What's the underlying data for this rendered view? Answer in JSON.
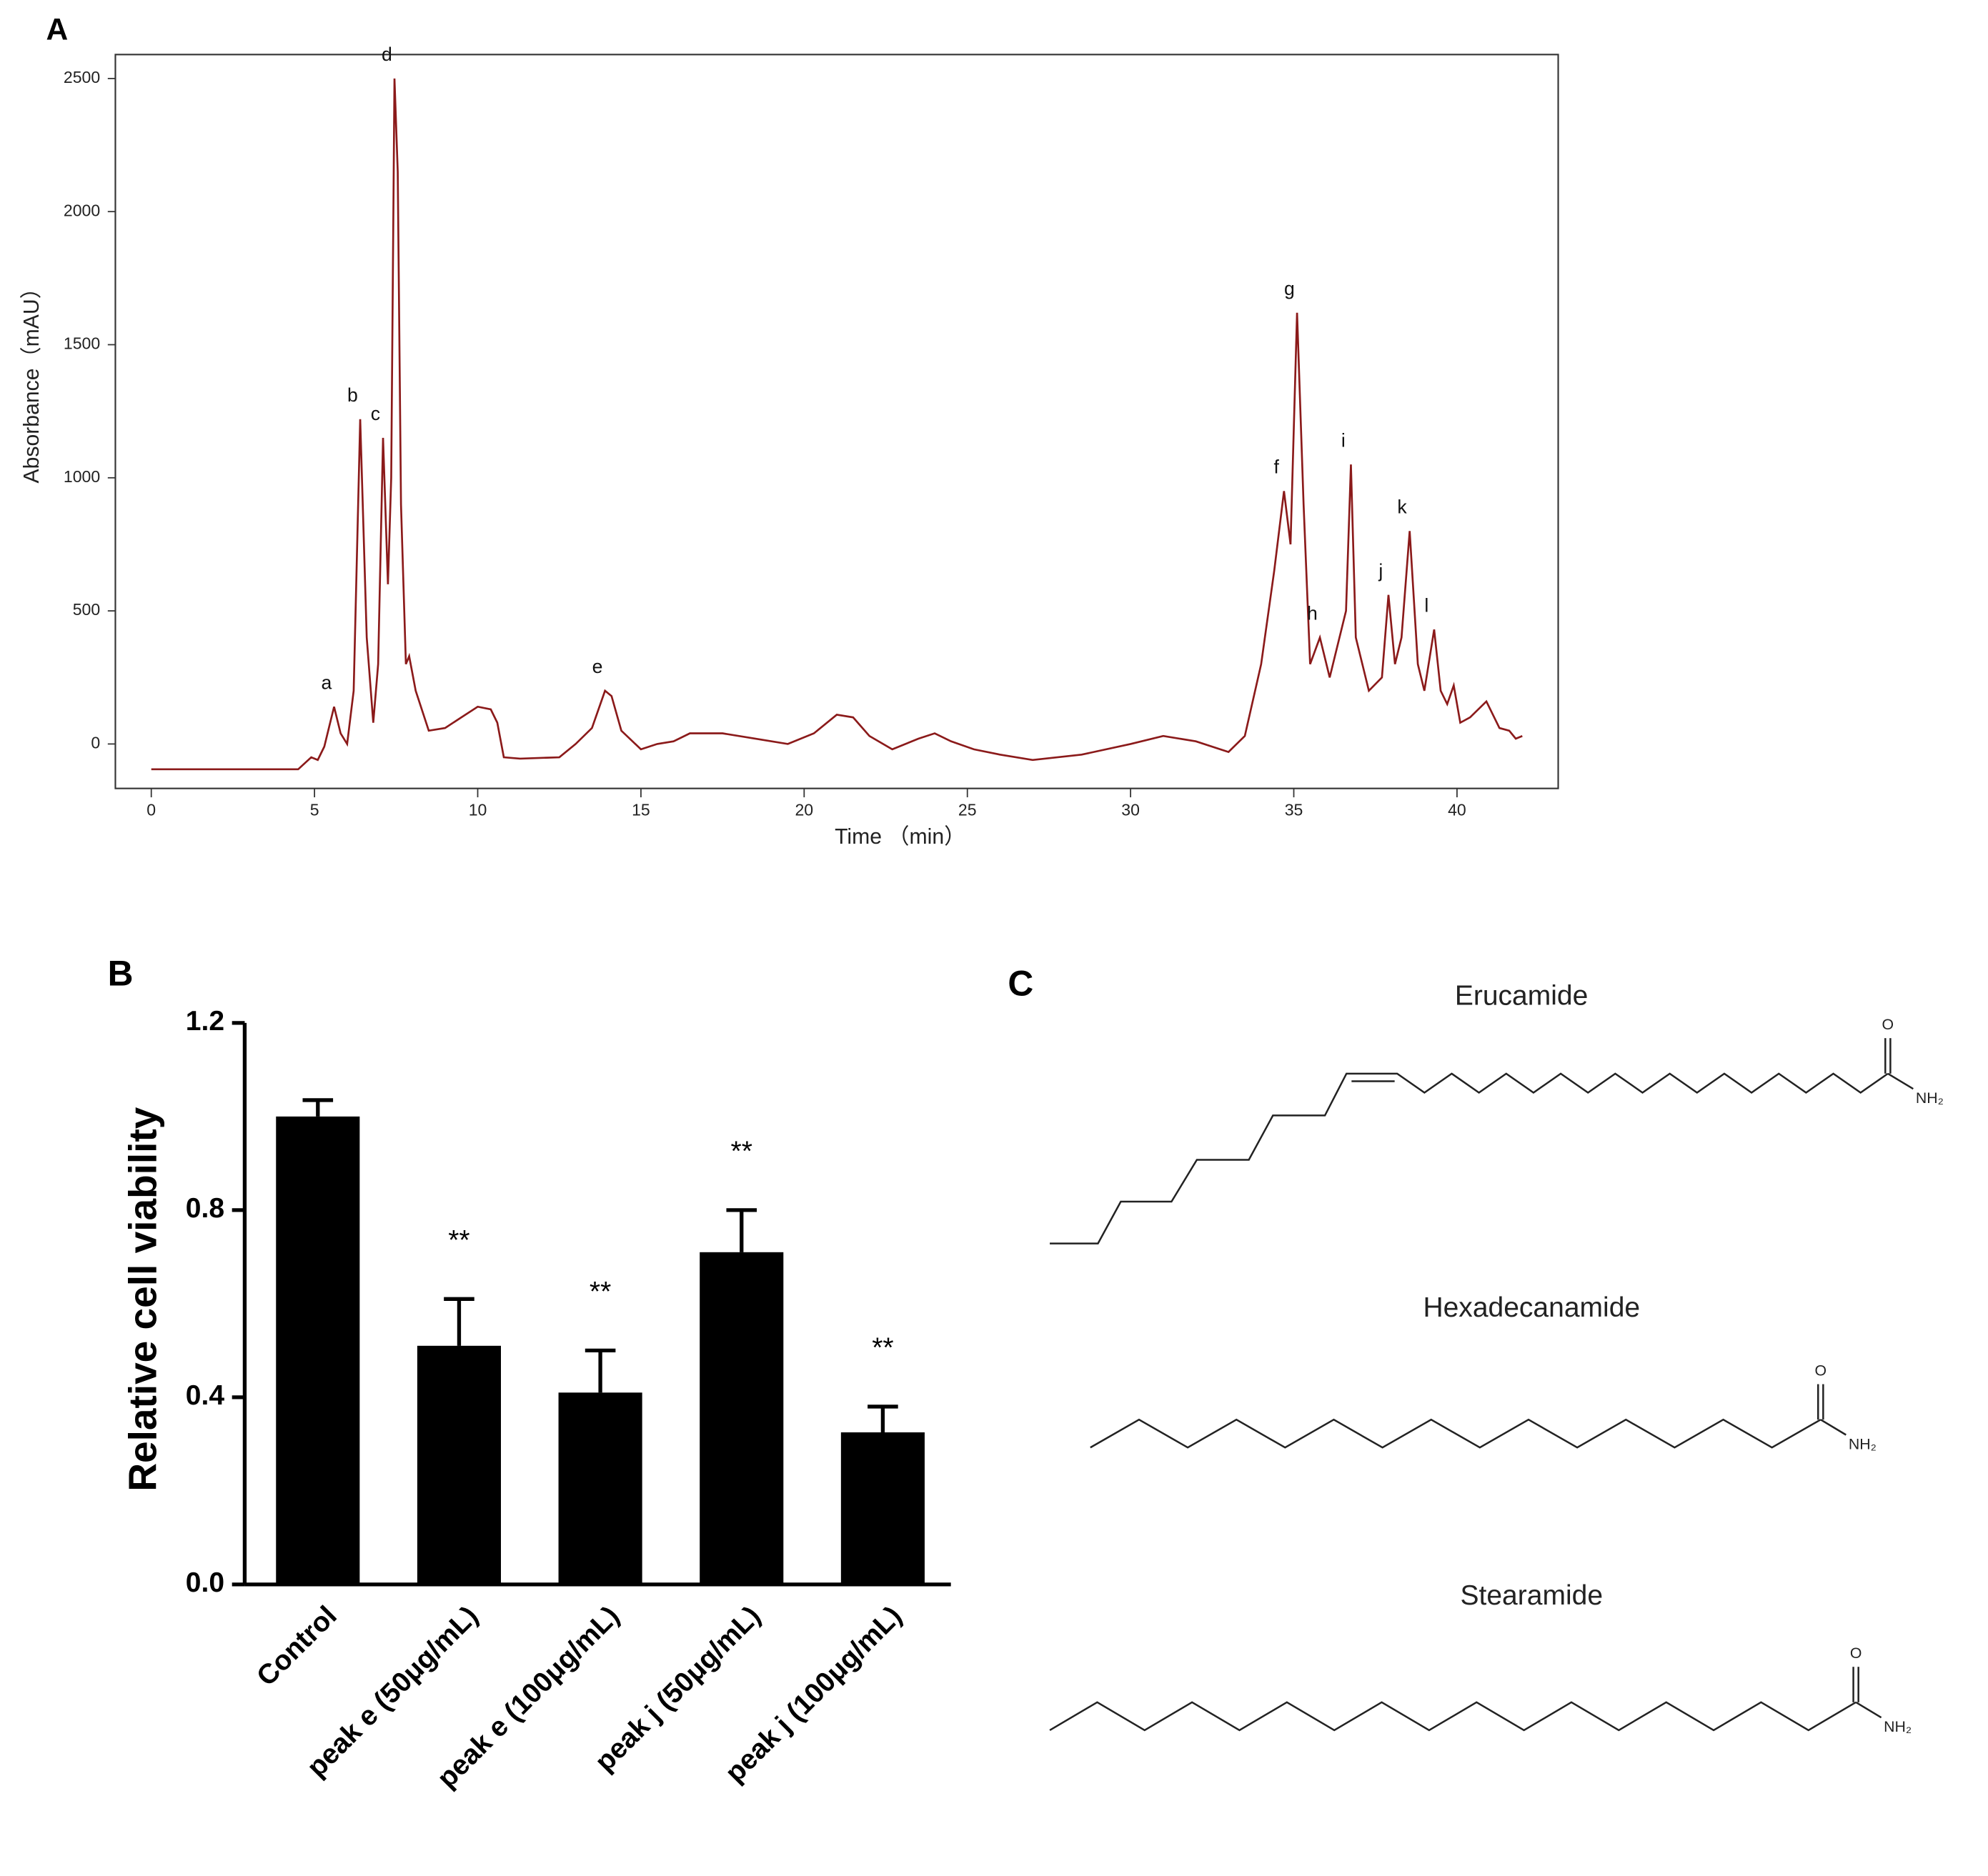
{
  "chart_data": [
    {
      "type": "line",
      "panel": "A",
      "x_label": "Time （min）",
      "y_label": "Absorbance（mAU）",
      "x": [
        0,
        4.5,
        4.9,
        5.1,
        5.3,
        5.6,
        5.8,
        6.0,
        6.2,
        6.4,
        6.6,
        6.8,
        6.95,
        7.1,
        7.25,
        7.35,
        7.45,
        7.55,
        7.65,
        7.8,
        7.9,
        8.1,
        8.5,
        9.0,
        9.5,
        10.0,
        10.4,
        10.6,
        10.8,
        11.3,
        12.5,
        13.0,
        13.5,
        13.9,
        14.1,
        14.4,
        15.0,
        15.5,
        16.0,
        16.5,
        17.5,
        18.5,
        19.5,
        20.3,
        21.0,
        21.5,
        22.0,
        22.7,
        23.5,
        24.0,
        24.5,
        25.2,
        26.0,
        27.0,
        28.5,
        30.0,
        31.0,
        32.0,
        33.0,
        33.5,
        34.0,
        34.4,
        34.7,
        34.9,
        35.1,
        35.3,
        35.5,
        35.8,
        36.1,
        36.4,
        36.6,
        36.75,
        36.9,
        37.3,
        37.7,
        37.9,
        38.1,
        38.3,
        38.55,
        38.8,
        39.0,
        39.3,
        39.5,
        39.7,
        39.9,
        40.1,
        40.4,
        40.9,
        41.3,
        41.6,
        41.8,
        42.0
      ],
      "series": [
        {
          "color": "#8b1a1a",
          "values": [
            -95,
            -95,
            -50,
            -60,
            -10,
            140,
            40,
            0,
            200,
            1220,
            400,
            80,
            300,
            1150,
            600,
            1000,
            2500,
            2150,
            900,
            300,
            330,
            200,
            50,
            60,
            100,
            140,
            130,
            80,
            -50,
            -55,
            -50,
            0,
            60,
            200,
            180,
            50,
            -20,
            0,
            10,
            40,
            40,
            20,
            0,
            40,
            110,
            100,
            30,
            -20,
            20,
            40,
            10,
            -20,
            -40,
            -60,
            -40,
            0,
            30,
            10,
            -30,
            30,
            300,
            650,
            950,
            750,
            1620,
            900,
            300,
            400,
            250,
            400,
            500,
            1050,
            400,
            200,
            250,
            560,
            300,
            400,
            800,
            300,
            200,
            430,
            200,
            150,
            220,
            80,
            100,
            160,
            60,
            50,
            20,
            30
          ]
        }
      ],
      "xlim": [
        -1.1,
        43.1
      ],
      "ylim": [
        -167,
        2590
      ],
      "xticks": [
        0,
        5,
        10,
        15,
        20,
        25,
        30,
        35,
        40
      ],
      "yticks": [
        0,
        500,
        1000,
        1500,
        2000,
        2500
      ],
      "annotations": [
        {
          "text": "a",
          "x": 5.6,
          "y": 140
        },
        {
          "text": "b",
          "x": 6.4,
          "y": 1220
        },
        {
          "text": "c",
          "x": 7.1,
          "y": 1150
        },
        {
          "text": "d",
          "x": 7.45,
          "y": 2500
        },
        {
          "text": "e",
          "x": 13.9,
          "y": 200
        },
        {
          "text": "f",
          "x": 34.7,
          "y": 950
        },
        {
          "text": "g",
          "x": 35.1,
          "y": 1620
        },
        {
          "text": "h",
          "x": 35.8,
          "y": 400
        },
        {
          "text": "i",
          "x": 36.75,
          "y": 1050
        },
        {
          "text": "j",
          "x": 37.9,
          "y": 560
        },
        {
          "text": "k",
          "x": 38.55,
          "y": 800
        },
        {
          "text": "l",
          "x": 39.3,
          "y": 430
        }
      ]
    },
    {
      "type": "bar",
      "panel": "B",
      "y_label": "Relative cell viability",
      "categories": [
        "Control",
        "peak e (50μg/mL)",
        "peak e (100μg/mL)",
        "peak j (50μg/mL)",
        "peak j (100μg/mL)"
      ],
      "values": [
        1.0,
        0.51,
        0.41,
        0.71,
        0.325
      ],
      "errors": [
        0.035,
        0.1,
        0.09,
        0.09,
        0.055
      ],
      "annotations": [
        null,
        "**",
        "**",
        "**",
        "**"
      ],
      "color": "#000000",
      "ylim": [
        0,
        1.2
      ],
      "yticks": [
        {
          "value": 0,
          "label": "0.0"
        },
        0.4,
        0.8,
        1.2
      ]
    }
  ],
  "structures": {
    "panel": "C",
    "molecules": [
      {
        "name": "Erucamide",
        "atoms": [
          "O",
          "NH₂"
        ]
      },
      {
        "name": "Hexadecanamide",
        "atoms": [
          "O",
          "NH₂"
        ]
      },
      {
        "name": "Stearamide",
        "atoms": [
          "O",
          "NH₂"
        ]
      }
    ]
  }
}
